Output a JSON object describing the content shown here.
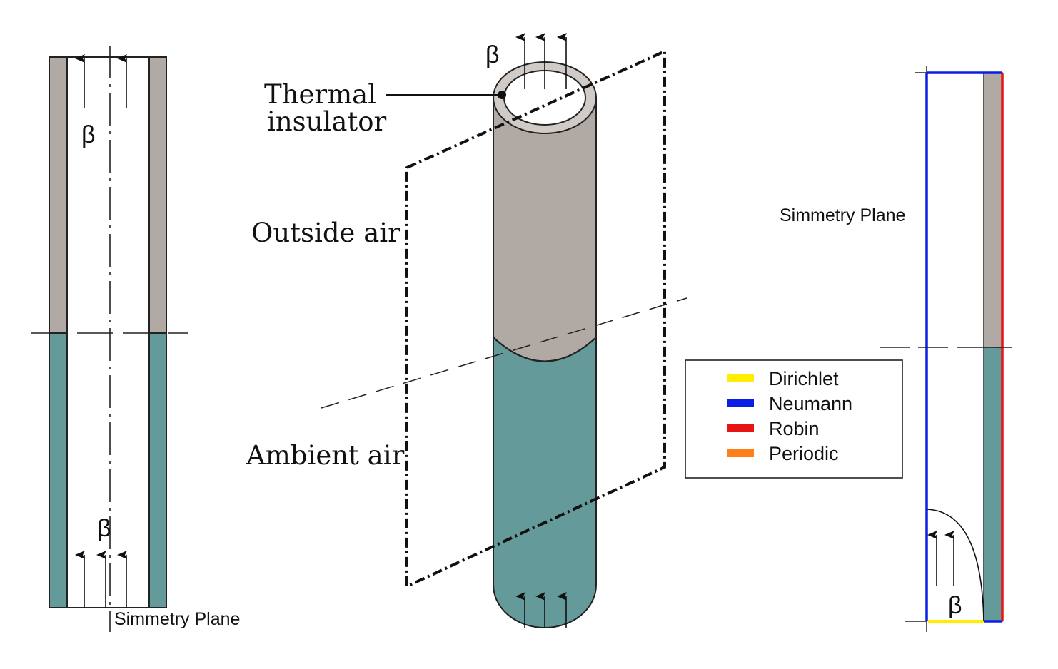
{
  "left_diagram": {
    "beta_top": "β",
    "beta_bottom": "β",
    "symmetry_label": "Simmetry Plane"
  },
  "center_diagram": {
    "beta_top": "β",
    "thermal_insulator_line1": "Thermal",
    "thermal_insulator_line2": "insulator",
    "outside_air": "Outside air",
    "ambient_air": "Ambient air"
  },
  "legend": {
    "items": [
      {
        "label": "Dirichlet",
        "color": "#ffee00"
      },
      {
        "label": "Neumann",
        "color": "#0a1ee6"
      },
      {
        "label": "Robin",
        "color": "#e61414"
      },
      {
        "label": "Periodic",
        "color": "#ff7f1a"
      }
    ]
  },
  "right_diagram": {
    "symmetry_label": "Simmetry Plane",
    "beta": "β"
  },
  "colors": {
    "insulated_gray": "#b0a9a4",
    "ambient_teal": "#659a9b",
    "neumann_blue": "#0a1ee6",
    "robin_red": "#e61414",
    "dirichlet_yellow": "#ffee00"
  }
}
